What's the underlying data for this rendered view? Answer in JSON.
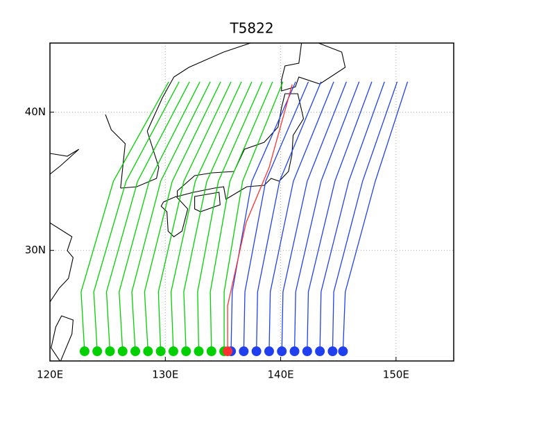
{
  "chart_data": {
    "type": "line",
    "title": "T5822",
    "xlim": [
      120,
      155
    ],
    "ylim": [
      22,
      45
    ],
    "xticks": [
      {
        "value": 120,
        "label": "120E"
      },
      {
        "value": 130,
        "label": "130E"
      },
      {
        "value": 140,
        "label": "140E"
      },
      {
        "value": 150,
        "label": "150E"
      }
    ],
    "yticks": [
      {
        "value": 30,
        "label": "30N"
      },
      {
        "value": 40,
        "label": "40N"
      }
    ],
    "grid": true,
    "markers": "start",
    "series": [
      {
        "color": "#00d000",
        "x": [
          123.0,
          122.7,
          125.5,
          130.3
        ],
        "y": [
          22.7,
          27,
          35,
          42.2
        ]
      },
      {
        "color": "#00d000",
        "x": [
          124.1,
          123.8,
          126.6,
          131.2
        ],
        "y": [
          22.7,
          27,
          35,
          42.2
        ]
      },
      {
        "color": "#00d000",
        "x": [
          125.2,
          124.9,
          127.6,
          132.1
        ],
        "y": [
          22.7,
          27,
          35,
          42.2
        ]
      },
      {
        "color": "#00d000",
        "x": [
          126.3,
          126.0,
          128.6,
          133.0
        ],
        "y": [
          22.7,
          27,
          35,
          42.2
        ]
      },
      {
        "color": "#00d000",
        "x": [
          127.4,
          127.1,
          129.6,
          133.9
        ],
        "y": [
          22.7,
          27,
          35,
          42.2
        ]
      },
      {
        "color": "#00d000",
        "x": [
          128.5,
          128.2,
          130.6,
          134.8
        ],
        "y": [
          22.7,
          27,
          35,
          42.2
        ]
      },
      {
        "color": "#00d000",
        "x": [
          129.6,
          129.4,
          131.6,
          135.7
        ],
        "y": [
          22.7,
          27,
          35,
          42.2
        ]
      },
      {
        "color": "#00d000",
        "x": [
          130.7,
          130.5,
          132.6,
          136.6
        ],
        "y": [
          22.7,
          27,
          35,
          42.2
        ]
      },
      {
        "color": "#00d000",
        "x": [
          131.8,
          131.6,
          133.6,
          137.5
        ],
        "y": [
          22.7,
          27,
          35,
          42.2
        ]
      },
      {
        "color": "#00d000",
        "x": [
          132.9,
          132.8,
          134.6,
          138.4
        ],
        "y": [
          22.7,
          27,
          35,
          42.2
        ]
      },
      {
        "color": "#00d000",
        "x": [
          134.0,
          133.9,
          135.6,
          139.3
        ],
        "y": [
          22.7,
          27,
          35,
          42.2
        ]
      },
      {
        "color": "#00d000",
        "x": [
          135.1,
          135.1,
          136.7,
          140.2
        ],
        "y": [
          22.7,
          27,
          35,
          42.2
        ]
      },
      {
        "color": "#2040f0",
        "x": [
          135.7,
          135.8,
          137.5,
          141.3
        ],
        "y": [
          22.7,
          27,
          35,
          42.2
        ]
      },
      {
        "color": "#2040f0",
        "x": [
          136.8,
          136.9,
          138.7,
          142.4
        ],
        "y": [
          22.7,
          27,
          35,
          42.2
        ]
      },
      {
        "color": "#2040f0",
        "x": [
          137.9,
          138.0,
          139.9,
          143.5
        ],
        "y": [
          22.7,
          27,
          35,
          42.2
        ]
      },
      {
        "color": "#2040f0",
        "x": [
          139.0,
          139.1,
          141.1,
          144.6
        ],
        "y": [
          22.7,
          27,
          35,
          42.2
        ]
      },
      {
        "color": "#2040f0",
        "x": [
          140.1,
          140.2,
          142.3,
          145.7
        ],
        "y": [
          22.7,
          27,
          35,
          42.2
        ]
      },
      {
        "color": "#2040f0",
        "x": [
          141.2,
          141.3,
          143.5,
          146.8
        ],
        "y": [
          22.7,
          27,
          35,
          42.2
        ]
      },
      {
        "color": "#2040f0",
        "x": [
          142.3,
          142.4,
          144.7,
          147.9
        ],
        "y": [
          22.7,
          27,
          35,
          42.2
        ]
      },
      {
        "color": "#2040f0",
        "x": [
          143.4,
          143.5,
          145.9,
          149.0
        ],
        "y": [
          22.7,
          27,
          35,
          42.2
        ]
      },
      {
        "color": "#2040f0",
        "x": [
          144.5,
          144.6,
          147.1,
          150.1
        ],
        "y": [
          22.7,
          27,
          35,
          42.2
        ]
      },
      {
        "color": "#2040f0",
        "x": [
          145.4,
          145.6,
          148.2,
          151.0
        ],
        "y": [
          22.7,
          27,
          35,
          42.2
        ]
      },
      {
        "color": "#ff3030",
        "x": [
          135.4,
          135.4,
          137.0,
          139.0,
          141.0
        ],
        "y": [
          22.7,
          26,
          32,
          36,
          42
        ]
      }
    ]
  }
}
